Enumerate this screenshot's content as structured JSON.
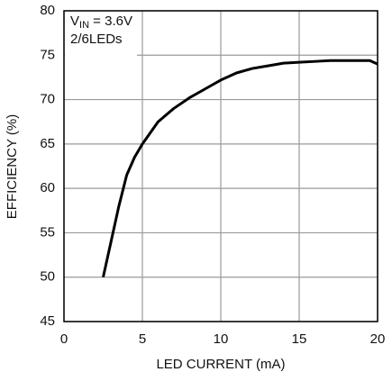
{
  "chart_data": {
    "type": "line",
    "annotation": {
      "symbol": "V",
      "subscript": "IN",
      "text": " = 3.6V",
      "line2": "2/6LEDs"
    },
    "xlabel": "LED CURRENT (mA)",
    "ylabel": "EFFICIENCY (%)",
    "x": [
      2.5,
      3,
      3.5,
      4,
      4.5,
      5,
      6,
      7,
      8,
      9,
      10,
      11,
      12,
      13,
      14,
      15,
      16,
      17,
      18,
      19,
      19.5,
      20
    ],
    "series": [
      {
        "color": "#000000",
        "values": [
          50,
          54,
          58,
          61.5,
          63.5,
          65,
          67.5,
          69,
          70.2,
          71.2,
          72.2,
          73,
          73.5,
          73.8,
          74.1,
          74.2,
          74.3,
          74.4,
          74.4,
          74.4,
          74.4,
          74
        ]
      }
    ],
    "xlim": [
      0,
      20
    ],
    "xticks": [
      0,
      5,
      10,
      15,
      20
    ],
    "ylim": [
      45,
      80
    ],
    "yticks": [
      45,
      50,
      55,
      60,
      65,
      70,
      75,
      80
    ],
    "grid": true
  }
}
